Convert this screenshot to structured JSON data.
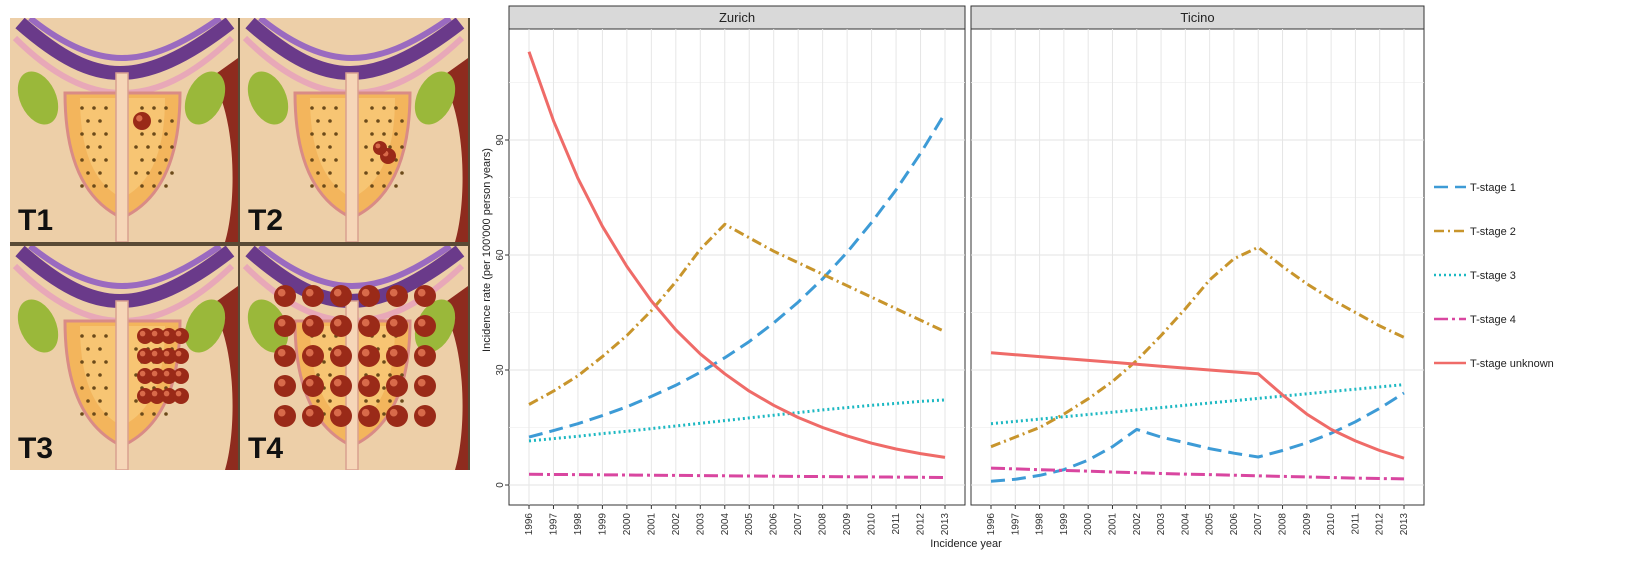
{
  "illustration": {
    "panels": [
      {
        "label": "T1"
      },
      {
        "label": "T2"
      },
      {
        "label": "T3"
      },
      {
        "label": "T4"
      }
    ]
  },
  "chart_data": {
    "type": "line",
    "xlabel": "Incidence year",
    "ylabel": "Incidence rate (per 100'000 person years)",
    "x": [
      1996,
      1997,
      1998,
      1999,
      2000,
      2001,
      2002,
      2003,
      2004,
      2005,
      2006,
      2007,
      2008,
      2009,
      2010,
      2011,
      2012,
      2013
    ],
    "xlim": [
      1996,
      2013
    ],
    "ylim": [
      0,
      120
    ],
    "yticks": [
      0,
      30,
      60,
      90
    ],
    "grid": true,
    "legend_position": "right",
    "legend": [
      "T-stage 1",
      "T-stage 2",
      "T-stage 3",
      "T-stage 4",
      "T-stage unknown"
    ],
    "series_styles": [
      {
        "name": "T-stage 1",
        "color": "#3d9bd6",
        "dash": "14,7"
      },
      {
        "name": "T-stage 2",
        "color": "#c8952c",
        "dash": "10,4,2,4"
      },
      {
        "name": "T-stage 3",
        "color": "#1cb8c2",
        "dash": "2,3"
      },
      {
        "name": "T-stage 4",
        "color": "#d946a0",
        "dash": "14,4,3,4"
      },
      {
        "name": "T-stage unknown",
        "color": "#ef6b68",
        "dash": ""
      }
    ],
    "facets": [
      {
        "title": "Zurich",
        "series": [
          {
            "name": "T-stage 1",
            "values": [
              12.5,
              14.2,
              16.0,
              18.1,
              20.4,
              23.1,
              26.0,
              29.4,
              33.2,
              37.4,
              42.3,
              47.7,
              53.8,
              60.7,
              68.5,
              77.0,
              86.5,
              97.0
            ]
          },
          {
            "name": "T-stage 2",
            "values": [
              21.0,
              24.5,
              28.5,
              33.5,
              39.0,
              45.5,
              53.0,
              61.5,
              68.0,
              64.5,
              61.0,
              58.0,
              55.0,
              52.0,
              49.0,
              46.0,
              43.0,
              40.0
            ]
          },
          {
            "name": "T-stage 3",
            "values": [
              11.5,
              12.1,
              12.7,
              13.4,
              14.0,
              14.7,
              15.4,
              16.1,
              16.8,
              17.5,
              18.2,
              18.9,
              19.6,
              20.2,
              20.8,
              21.3,
              21.8,
              22.2
            ]
          },
          {
            "name": "T-stage 4",
            "values": [
              2.8,
              2.75,
              2.7,
              2.65,
              2.6,
              2.55,
              2.5,
              2.45,
              2.4,
              2.35,
              2.3,
              2.25,
              2.2,
              2.15,
              2.1,
              2.05,
              2.0,
              1.95
            ]
          },
          {
            "name": "T-stage unknown",
            "values": [
              113.0,
              95.0,
              80.0,
              67.5,
              57.0,
              48.0,
              40.5,
              34.2,
              29.0,
              24.5,
              20.8,
              17.6,
              15.0,
              12.8,
              10.9,
              9.4,
              8.2,
              7.2
            ]
          }
        ]
      },
      {
        "title": "Ticino",
        "series": [
          {
            "name": "T-stage 1",
            "values": [
              1.0,
              1.5,
              2.5,
              4.0,
              6.5,
              10.0,
              14.5,
              12.5,
              11.0,
              9.5,
              8.3,
              7.3,
              9.0,
              11.0,
              13.5,
              16.5,
              20.0,
              24.0
            ]
          },
          {
            "name": "T-stage 2",
            "values": [
              10.0,
              12.5,
              15.0,
              18.5,
              22.5,
              27.0,
              32.5,
              39.0,
              46.0,
              53.5,
              59.0,
              62.0,
              57.0,
              52.5,
              48.5,
              45.0,
              41.5,
              38.5
            ]
          },
          {
            "name": "T-stage 3",
            "values": [
              16.0,
              16.6,
              17.2,
              17.8,
              18.4,
              19.0,
              19.6,
              20.2,
              20.8,
              21.4,
              22.0,
              22.6,
              23.2,
              23.8,
              24.4,
              25.0,
              25.6,
              26.2
            ]
          },
          {
            "name": "T-stage 4",
            "values": [
              4.4,
              4.2,
              4.0,
              3.8,
              3.6,
              3.4,
              3.2,
              3.0,
              2.85,
              2.7,
              2.55,
              2.4,
              2.25,
              2.1,
              1.95,
              1.8,
              1.7,
              1.6
            ]
          },
          {
            "name": "T-stage unknown",
            "values": [
              34.5,
              34.0,
              33.5,
              33.0,
              32.5,
              32.0,
              31.5,
              31.0,
              30.5,
              30.0,
              29.5,
              29.0,
              23.5,
              18.5,
              14.5,
              11.5,
              9.0,
              7.0
            ]
          }
        ]
      }
    ]
  }
}
